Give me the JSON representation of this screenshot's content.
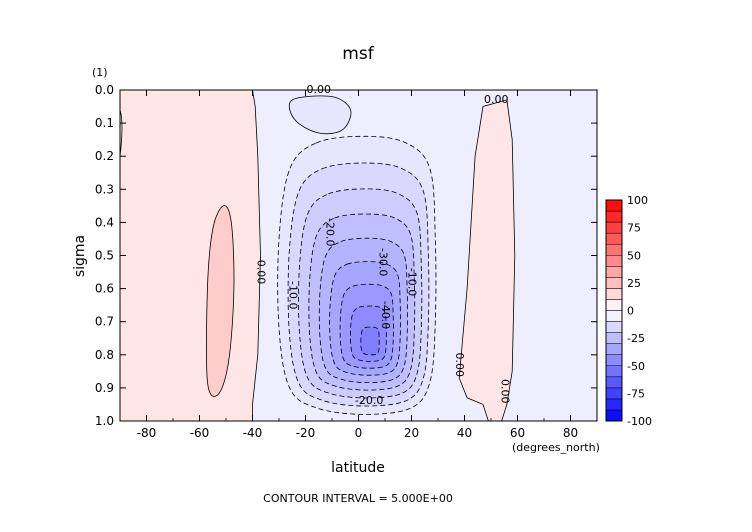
{
  "chart_data": {
    "type": "contour",
    "title": "msf",
    "units_label": "(1)",
    "xlabel": "latitude",
    "x_units": "(degrees_north)",
    "ylabel": "sigma",
    "xlim": [
      -90,
      90
    ],
    "ylim": [
      1.0,
      0.0
    ],
    "y_inverted": true,
    "x_ticks": [
      -80,
      -60,
      -40,
      -20,
      0,
      20,
      40,
      60,
      80
    ],
    "y_ticks": [
      "0.0",
      "0.1",
      "0.2",
      "0.3",
      "0.4",
      "0.5",
      "0.6",
      "0.7",
      "0.8",
      "0.9",
      "1.0"
    ],
    "contour_interval_text": "CONTOUR INTERVAL = 5.000E+00",
    "contour_labels": [
      {
        "text": "0.00",
        "lat": -15,
        "sigma": 0.0
      },
      {
        "text": "0.00",
        "lat": 52,
        "sigma": 0.03
      },
      {
        "text": "0.00",
        "lat": -37,
        "sigma": 0.55
      },
      {
        "text": "-10.0",
        "lat": -25,
        "sigma": 0.62
      },
      {
        "text": "-20.0",
        "lat": -11,
        "sigma": 0.43
      },
      {
        "text": "-30.0",
        "lat": 9,
        "sigma": 0.52
      },
      {
        "text": "-40.0",
        "lat": 10,
        "sigma": 0.68
      },
      {
        "text": "-10.0",
        "lat": 20,
        "sigma": 0.58
      },
      {
        "text": "-20.0",
        "lat": 4,
        "sigma": 0.94
      },
      {
        "text": "0.00",
        "lat": 38,
        "sigma": 0.83
      },
      {
        "text": "0.00",
        "lat": 55,
        "sigma": 0.91
      }
    ],
    "field_extrema": {
      "min_lat": 5,
      "min_sigma": 0.78,
      "min_value": -47
    }
  },
  "colorbar": {
    "levels": [
      -100,
      -90,
      -80,
      -70,
      -60,
      -50,
      -40,
      -30,
      -20,
      -10,
      0,
      10,
      20,
      30,
      40,
      50,
      60,
      70,
      80,
      90,
      100
    ],
    "tick_labels": [
      "100",
      "75",
      "50",
      "25",
      "0",
      "-25",
      "-50",
      "-75",
      "-100"
    ],
    "low_color": "#0000ff",
    "mid_color": "#ffffff",
    "high_color": "#ff0000"
  }
}
